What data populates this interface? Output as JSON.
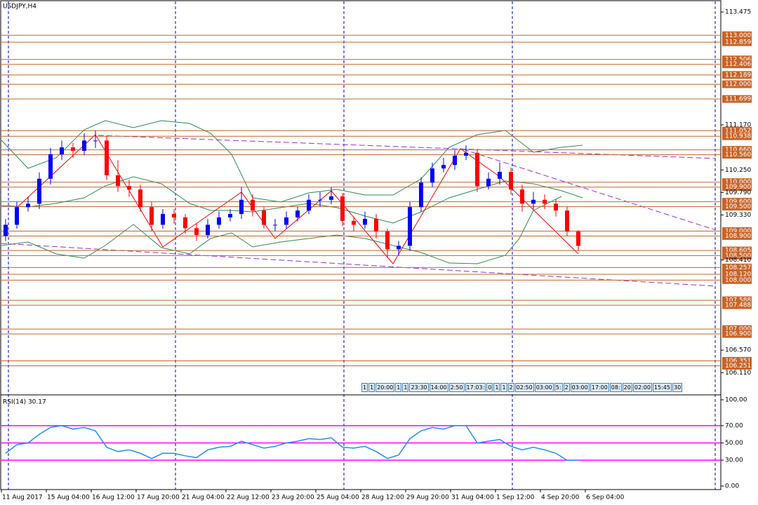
{
  "chart_data": [
    {
      "type": "candlestick",
      "title": "USDJPY,H4",
      "up_color": "#0000ff",
      "down_color": "#ff0000",
      "level_color": "#c86428",
      "ylim": [
        105.67,
        113.72
      ],
      "yticks": [
        113.475,
        {
          "value": 111.17,
          "label": "111.170"
        },
        {
          "value": 110.25,
          "label": "110.250"
        },
        {
          "value": 109.79,
          "label": "109.790"
        },
        {
          "value": 109.33,
          "label": "109.330"
        },
        {
          "value": 108.41,
          "label": "108.410"
        },
        {
          "value": 106.57,
          "label": "106.570"
        },
        {
          "value": 106.11,
          "label": "106.110"
        }
      ],
      "levels": [
        {
          "value": 113,
          "label": "113.000"
        },
        {
          "value": 112.859,
          "label": "112.859"
        },
        {
          "value": 112.506,
          "label": "112.506"
        },
        {
          "value": 112.406,
          "label": "112.406"
        },
        {
          "value": 112.189,
          "label": "112.189"
        },
        {
          "value": 112,
          "label": "112.000"
        },
        {
          "value": 111.699,
          "label": "111.699"
        },
        {
          "value": 111.052,
          "label": "111.052"
        },
        {
          "value": 110.938,
          "label": "110.938"
        },
        {
          "value": 110.66,
          "label": "110.660"
        },
        {
          "value": 110.56,
          "label": "110.560"
        },
        {
          "value": 110,
          "label": "110.000"
        },
        {
          "value": 109.9,
          "label": "109.900"
        },
        {
          "value": 109.6,
          "label": "109.600"
        },
        {
          "value": 109.5,
          "label": "109.500"
        },
        {
          "value": 109,
          "label": "109.000"
        },
        {
          "value": 108.9,
          "label": "108.900"
        },
        {
          "value": 108.605,
          "label": "108.605"
        },
        {
          "value": 108.5,
          "label": "108.500"
        },
        {
          "value": 108.257,
          "label": "108.257"
        },
        {
          "value": 108.12,
          "label": "108.120"
        },
        {
          "value": 108,
          "label": "108.000"
        },
        {
          "value": 107.588,
          "label": "107.588"
        },
        {
          "value": 107.488,
          "label": "107.488"
        },
        {
          "value": 107,
          "label": "107.000"
        },
        {
          "value": 106.9,
          "label": "106.900"
        },
        {
          "value": 106.351,
          "label": "106.351"
        },
        {
          "value": 106.251,
          "label": "106.251"
        }
      ],
      "x_labels": [
        "11 Aug 2017",
        "15 Aug 04:00",
        "16 Aug 12:00",
        "17 Aug 20:00",
        "21 Aug 04:00",
        "22 Aug 12:00",
        "23 Aug 20:00",
        "25 Aug 04:00",
        "28 Aug 12:00",
        "29 Aug 20:00",
        "31 Aug 04:00",
        "1 Sep 12:00",
        "4 Sep 20:00",
        "6 Sep 04:00"
      ],
      "time_marks": [
        "1",
        "1",
        "20:00",
        "1",
        "1",
        "23:30",
        "14:00",
        "2:50",
        "17:03:",
        "0",
        "1",
        "1",
        "2",
        "02:50",
        "03:00",
        "5:",
        "2",
        "03:00",
        "17:00",
        "08:",
        "20",
        "02:00",
        "15:45",
        "30"
      ],
      "open": [
        108.9,
        109.13,
        109.49,
        109.56,
        110.07,
        110.57,
        110.71,
        110.64,
        110.85,
        110.85,
        110.14,
        109.92,
        109.85,
        109.49,
        109.13,
        109.35,
        109.28,
        109.06,
        108.92,
        109.13,
        109.28,
        109.35,
        109.64,
        109.42,
        109.13,
        109.13,
        109.28,
        109.42,
        109.64,
        109.64,
        109.71,
        109.21,
        109.13,
        109.25,
        108.99,
        108.63,
        108.7,
        109.49,
        109.99,
        110.28,
        110.35,
        110.54,
        110.6,
        109.92,
        110.07,
        110.21,
        109.85,
        109.56,
        109.64,
        109.56,
        109.42,
        108.99
      ],
      "high": [
        109.25,
        109.6,
        109.7,
        110.2,
        110.7,
        110.85,
        110.8,
        111.0,
        111.05,
        110.95,
        110.45,
        110.05,
        109.95,
        109.6,
        109.45,
        109.45,
        109.35,
        109.15,
        109.25,
        109.4,
        109.45,
        109.9,
        109.75,
        109.5,
        109.25,
        109.4,
        109.5,
        109.75,
        109.8,
        109.9,
        109.78,
        109.3,
        109.4,
        109.35,
        109.05,
        108.8,
        109.6,
        110.1,
        110.4,
        110.5,
        110.65,
        110.75,
        110.68,
        110.2,
        110.4,
        110.3,
        109.95,
        109.8,
        109.75,
        109.65,
        109.5,
        109.02
      ],
      "low": [
        108.8,
        109.05,
        109.4,
        109.45,
        109.95,
        110.45,
        110.5,
        110.55,
        110.7,
        110.05,
        109.8,
        109.7,
        109.4,
        109.0,
        109.05,
        109.15,
        108.95,
        108.8,
        108.85,
        109.05,
        109.2,
        109.25,
        109.3,
        109.05,
        109.0,
        109.05,
        109.2,
        109.35,
        109.5,
        109.55,
        109.1,
        109.0,
        109.05,
        108.85,
        108.45,
        108.5,
        108.6,
        109.4,
        109.9,
        110.2,
        110.25,
        110.45,
        109.8,
        109.85,
        109.95,
        109.75,
        109.4,
        109.45,
        109.45,
        109.3,
        108.9,
        108.6
      ],
      "close": [
        109.13,
        109.49,
        109.56,
        110.07,
        110.57,
        110.71,
        110.64,
        110.85,
        110.85,
        110.14,
        109.92,
        109.85,
        109.49,
        109.13,
        109.35,
        109.28,
        109.06,
        108.92,
        109.13,
        109.28,
        109.35,
        109.64,
        109.42,
        109.13,
        109.13,
        109.28,
        109.42,
        109.64,
        109.64,
        109.71,
        109.21,
        109.13,
        109.25,
        108.99,
        108.63,
        108.7,
        109.49,
        109.99,
        110.28,
        110.35,
        110.54,
        110.6,
        109.92,
        110.07,
        110.21,
        109.85,
        109.56,
        109.64,
        109.56,
        109.42,
        108.99,
        108.7
      ]
    },
    {
      "type": "line",
      "title": "RSI(14) 30.17",
      "color": "#1e90ff",
      "level_color": "#ff00ff",
      "ylim": [
        0,
        100
      ],
      "yticks": [
        {
          "value": 100,
          "label": "100.00"
        },
        {
          "value": 70,
          "label": "70.00"
        },
        {
          "value": 50,
          "label": "50.00"
        },
        {
          "value": 30,
          "label": "30.00"
        },
        {
          "value": 0,
          "label": "0.00"
        }
      ],
      "levels": [
        70,
        50,
        30
      ],
      "values": [
        38,
        48,
        50,
        60,
        68,
        70,
        66,
        68,
        64,
        45,
        40,
        42,
        38,
        32,
        38,
        38,
        35,
        33,
        42,
        45,
        46,
        52,
        48,
        44,
        46,
        50,
        52,
        55,
        54,
        56,
        45,
        44,
        46,
        40,
        32,
        36,
        55,
        64,
        68,
        66,
        70,
        70,
        50,
        52,
        54,
        46,
        42,
        45,
        42,
        38,
        30,
        30
      ]
    }
  ]
}
